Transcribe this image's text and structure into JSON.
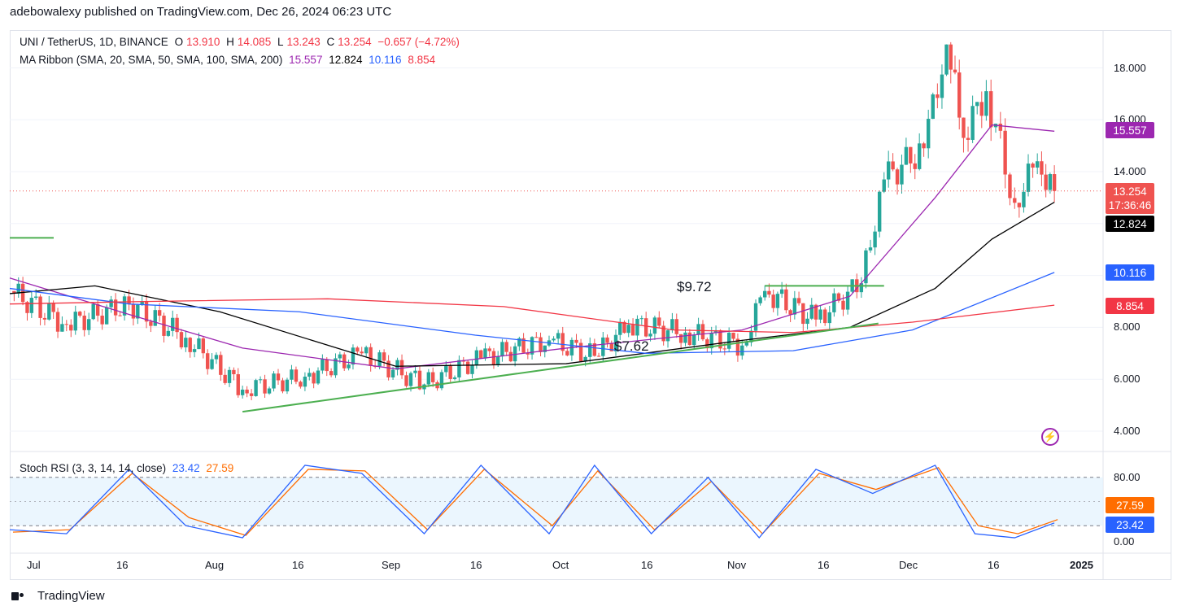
{
  "header": {
    "publisher_line": "adebowalexy published on TradingView.com, Dec 26, 2024 06:23 UTC"
  },
  "legend_main": {
    "symbol": "UNI / TetherUS, 1D, BINANCE",
    "open_label": "O",
    "open": "13.910",
    "high_label": "H",
    "high": "14.085",
    "low_label": "L",
    "low": "13.243",
    "close_label": "C",
    "close": "13.254",
    "change": "−0.657 (−4.72%)"
  },
  "legend_ma": {
    "label": "MA Ribbon (SMA, 20, SMA, 50, SMA, 100, SMA, 200)",
    "ma20": "15.557",
    "ma50": "12.824",
    "ma100": "10.116",
    "ma200": "8.854"
  },
  "legend_rsi": {
    "label": "Stoch RSI (3, 3, 14, 14, close)",
    "k": "23.42",
    "d": "27.59"
  },
  "price_axis": [
    "18.000",
    "16.000",
    "14.000",
    "8.000",
    "6.000",
    "4.000"
  ],
  "rsi_axis": [
    "80.00",
    "0.00"
  ],
  "time_axis": [
    "Jul",
    "16",
    "Aug",
    "16",
    "Sep",
    "16",
    "Oct",
    "16",
    "Nov",
    "16",
    "Dec",
    "16",
    "2025"
  ],
  "tags": {
    "ma20": "15.557",
    "last_price": "13.254",
    "countdown": "17:36:46",
    "ma50": "12.824",
    "ma100": "10.116",
    "ma200": "8.854",
    "rsi_d": "27.59",
    "rsi_k": "23.42"
  },
  "annotations": {
    "level_high": "$9.72",
    "level_low": "$7.62"
  },
  "footer": {
    "brand": "TradingView"
  },
  "colors": {
    "up": "#26a69a",
    "down": "#ef5350",
    "ma20": "#9c27b0",
    "ma50": "#000000",
    "ma100": "#2962ff",
    "ma200": "#f23645",
    "rsi_k": "#2962ff",
    "rsi_d": "#ff6d00",
    "trendline": "#4caf50"
  },
  "chart_data": {
    "type": "line",
    "title": "UNI / TetherUS, 1D, BINANCE",
    "ylim": [
      3.5,
      19.5
    ],
    "series": [
      {
        "name": "SMA 20",
        "x": [
          "2024-06-25",
          "2024-07-16",
          "2024-08-05",
          "2024-09-01",
          "2024-10-01",
          "2024-11-01",
          "2024-11-20",
          "2024-12-05",
          "2024-12-15",
          "2024-12-26"
        ],
        "values": [
          9.9,
          8.5,
          7.2,
          6.4,
          7.2,
          7.9,
          9.2,
          13.0,
          15.8,
          15.557
        ]
      },
      {
        "name": "SMA 50",
        "x": [
          "2024-06-25",
          "2024-07-10",
          "2024-08-01",
          "2024-09-01",
          "2024-10-01",
          "2024-11-01",
          "2024-11-20",
          "2024-12-05",
          "2024-12-15",
          "2024-12-26"
        ],
        "values": [
          9.3,
          9.6,
          8.6,
          6.5,
          6.6,
          7.5,
          8.0,
          9.5,
          11.4,
          12.824
        ]
      },
      {
        "name": "SMA 100",
        "x": [
          "2024-06-25",
          "2024-07-16",
          "2024-08-15",
          "2024-09-15",
          "2024-10-15",
          "2024-11-10",
          "2024-12-01",
          "2024-12-26"
        ],
        "values": [
          9.5,
          8.9,
          8.6,
          7.7,
          7.0,
          7.1,
          7.9,
          10.116
        ]
      },
      {
        "name": "SMA 200",
        "x": [
          "2024-06-25",
          "2024-07-20",
          "2024-08-20",
          "2024-09-20",
          "2024-10-20",
          "2024-11-10",
          "2024-12-01",
          "2024-12-26"
        ],
        "values": [
          8.9,
          9.0,
          9.1,
          8.8,
          7.9,
          7.8,
          8.2,
          8.854
        ]
      }
    ],
    "candles_close": [
      {
        "x": "2024-06-25",
        "value": 9.4
      },
      {
        "x": "2024-07-05",
        "value": 8.1
      },
      {
        "x": "2024-07-16",
        "value": 8.9
      },
      {
        "x": "2024-07-26",
        "value": 7.6
      },
      {
        "x": "2024-08-05",
        "value": 5.6
      },
      {
        "x": "2024-08-16",
        "value": 6.1
      },
      {
        "x": "2024-08-26",
        "value": 7.0
      },
      {
        "x": "2024-09-06",
        "value": 5.8
      },
      {
        "x": "2024-09-16",
        "value": 6.8
      },
      {
        "x": "2024-09-28",
        "value": 7.5
      },
      {
        "x": "2024-10-06",
        "value": 6.9
      },
      {
        "x": "2024-10-12",
        "value": 8.1
      },
      {
        "x": "2024-10-22",
        "value": 7.8
      },
      {
        "x": "2024-11-01",
        "value": 7.3
      },
      {
        "x": "2024-11-05",
        "value": 9.4
      },
      {
        "x": "2024-11-14",
        "value": 8.3
      },
      {
        "x": "2024-11-22",
        "value": 9.7
      },
      {
        "x": "2024-11-26",
        "value": 13.7
      },
      {
        "x": "2024-12-03",
        "value": 14.9
      },
      {
        "x": "2024-12-07",
        "value": 18.9
      },
      {
        "x": "2024-12-10",
        "value": 15.3
      },
      {
        "x": "2024-12-14",
        "value": 17.1
      },
      {
        "x": "2024-12-19",
        "value": 12.8
      },
      {
        "x": "2024-12-23",
        "value": 14.4
      },
      {
        "x": "2024-12-26",
        "value": 13.254
      }
    ],
    "stoch_rsi": {
      "k_name": "K",
      "d_name": "D",
      "x": [
        "2024-06-25",
        "2024-07-05",
        "2024-07-16",
        "2024-07-26",
        "2024-08-05",
        "2024-08-16",
        "2024-08-26",
        "2024-09-06",
        "2024-09-16",
        "2024-09-28",
        "2024-10-06",
        "2024-10-16",
        "2024-10-26",
        "2024-11-04",
        "2024-11-14",
        "2024-11-24",
        "2024-12-05",
        "2024-12-12",
        "2024-12-19",
        "2024-12-26"
      ],
      "k": [
        15,
        10,
        90,
        20,
        5,
        95,
        85,
        10,
        95,
        10,
        95,
        10,
        80,
        5,
        90,
        60,
        95,
        10,
        5,
        23.42
      ],
      "d": [
        12,
        15,
        85,
        30,
        8,
        90,
        88,
        15,
        90,
        20,
        88,
        15,
        75,
        10,
        85,
        65,
        92,
        20,
        10,
        27.59
      ],
      "ylim": [
        0,
        100
      ],
      "bands": [
        80,
        20
      ]
    }
  }
}
